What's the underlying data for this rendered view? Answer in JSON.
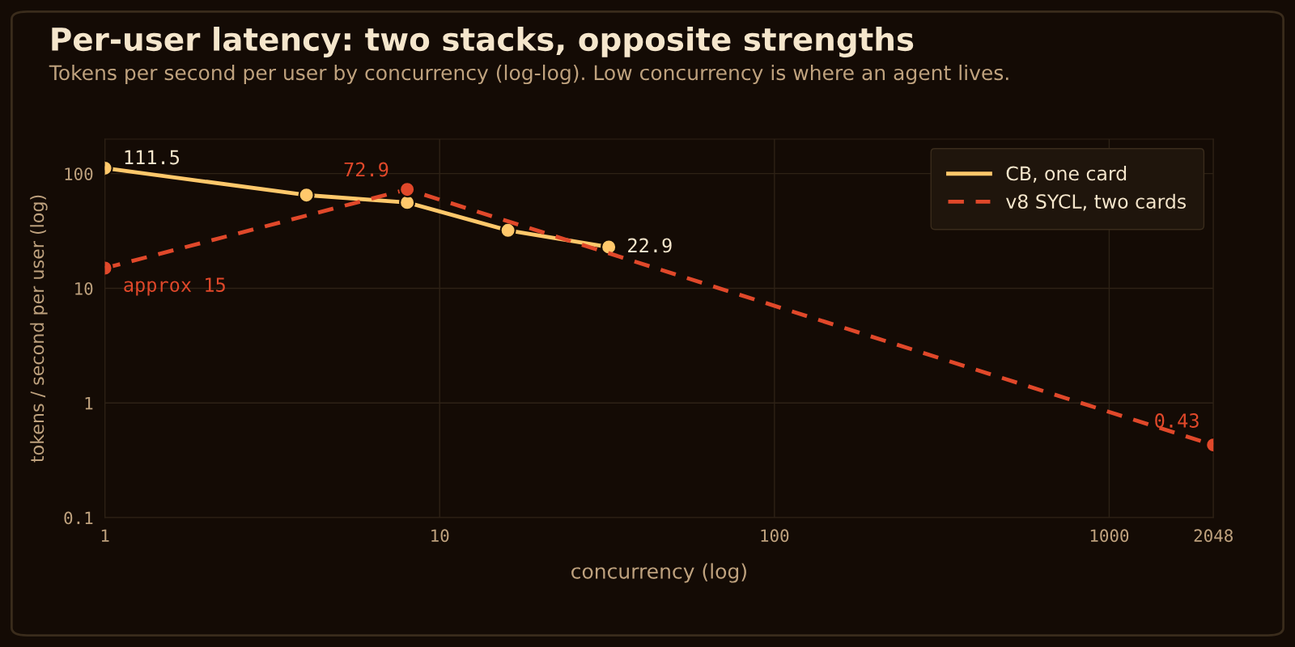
{
  "chart_data": {
    "type": "line",
    "title": "Per-user latency: two stacks, opposite strengths",
    "subtitle": "Tokens per second per user by concurrency (log-log). Low concurrency is where an agent lives.",
    "xlabel": "concurrency (log)",
    "ylabel": "tokens / second per user (log)",
    "series": [
      {
        "name": "CB, one card",
        "color": "#ffc86b",
        "line_style": "solid",
        "x": [
          1,
          4,
          8,
          16,
          32
        ],
        "values": [
          111.5,
          65,
          56,
          32,
          22.9
        ]
      },
      {
        "name": "v8 SYCL, two cards",
        "color": "#e0482a",
        "line_style": "dashed",
        "x": [
          1,
          8,
          2048
        ],
        "values": [
          15,
          72.9,
          0.43
        ]
      }
    ],
    "annotations": [
      {
        "text": "111.5",
        "x": 1,
        "y": 111.5
      },
      {
        "text": "72.9",
        "x": 8,
        "y": 72.9
      },
      {
        "text": "22.9",
        "x": 32,
        "y": 22.9
      },
      {
        "text": "approx 15",
        "x": 1,
        "y": 15
      },
      {
        "text": "0.43",
        "x": 2048,
        "y": 0.43
      }
    ],
    "log": "xy",
    "xlim": [
      1,
      2048
    ],
    "ylim": [
      0.1,
      200
    ],
    "xticks": [
      1,
      10,
      100,
      1000,
      2048
    ],
    "yticks": [
      0.1,
      1,
      10,
      100
    ],
    "grid": true,
    "legend": "top right",
    "marker": "circle"
  }
}
